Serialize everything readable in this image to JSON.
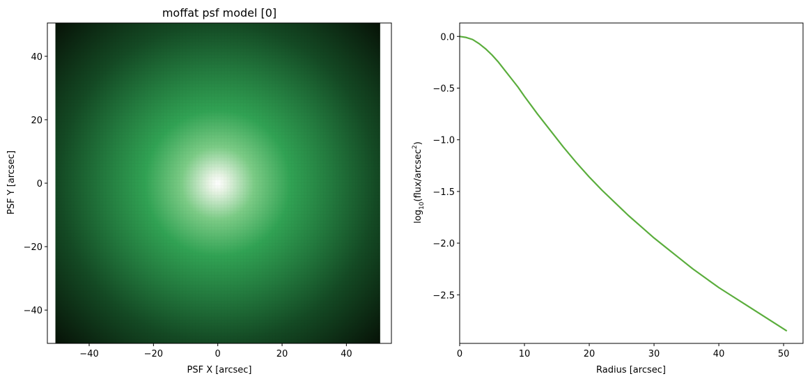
{
  "chart_data": [
    {
      "type": "heatmap",
      "title": "moffat psf model [0]",
      "xlabel": "PSF X [arcsec]",
      "ylabel": "PSF Y [arcsec]",
      "xlim": [
        -53,
        54
      ],
      "ylim": [
        -50.5,
        50.5
      ],
      "extent": [
        -50.5,
        50.5,
        -50.5,
        50.5
      ],
      "xticks": [
        -40,
        -20,
        0,
        20,
        40
      ],
      "yticks": [
        -40,
        -20,
        0,
        20,
        40
      ],
      "xtick_labels": [
        "−40",
        "−20",
        "0",
        "20",
        "40"
      ],
      "ytick_labels": [
        "−40",
        "−20",
        "0",
        "20",
        "40"
      ],
      "grid": false,
      "colormap": "greens (white center, dark green edges)",
      "center": [
        0,
        0
      ],
      "pixel_size": 1,
      "colors": {
        "center": "#ffffff",
        "mid": "#31a354",
        "edge": "#071307"
      }
    },
    {
      "type": "line",
      "title": "",
      "xlabel": "Radius [arcsec]",
      "ylabel": "log10(flux/arcsec2)",
      "ylabel_parts": {
        "prefix": "log",
        "sub": "10",
        "middle": "(flux/arcsec",
        "sup": "2",
        "suffix": ")"
      },
      "xlim": [
        0,
        53
      ],
      "ylim": [
        -2.97,
        0.13
      ],
      "xticks": [
        0,
        10,
        20,
        30,
        40,
        50
      ],
      "xtick_labels": [
        "0",
        "10",
        "20",
        "30",
        "40",
        "50"
      ],
      "yticks": [
        0.0,
        -0.5,
        -1.0,
        -1.5,
        -2.0,
        -2.5
      ],
      "ytick_labels": [
        "0.0",
        "−0.5",
        "−1.0",
        "−1.5",
        "−2.0",
        "−2.5"
      ],
      "grid": false,
      "series": [
        {
          "color": "#5aad3c",
          "x": [
            0,
            1,
            2,
            3,
            4,
            5,
            6,
            7,
            8,
            9,
            10,
            12,
            14,
            16,
            18,
            20,
            22,
            24,
            26,
            28,
            30,
            32,
            34,
            36,
            38,
            40,
            42,
            44,
            46,
            48,
            50,
            50.5
          ],
          "y": [
            0.0,
            -0.01,
            -0.03,
            -0.07,
            -0.12,
            -0.18,
            -0.25,
            -0.33,
            -0.41,
            -0.49,
            -0.58,
            -0.75,
            -0.91,
            -1.07,
            -1.22,
            -1.36,
            -1.49,
            -1.61,
            -1.73,
            -1.84,
            -1.95,
            -2.05,
            -2.15,
            -2.25,
            -2.34,
            -2.43,
            -2.51,
            -2.59,
            -2.67,
            -2.75,
            -2.83,
            -2.85
          ]
        }
      ]
    }
  ]
}
